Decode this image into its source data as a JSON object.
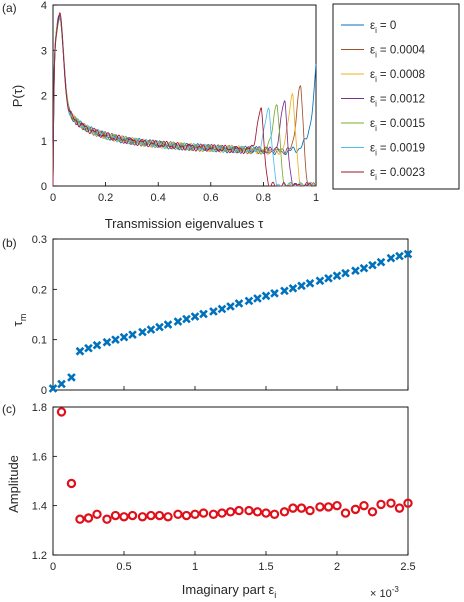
{
  "chart_data": [
    {
      "panel_label": "(a)",
      "type": "line",
      "xlabel": "Transmission eigenvalues τ",
      "ylabel": "P(τ)",
      "xlim": [
        0,
        1
      ],
      "ylim": [
        0,
        4
      ],
      "xticks": [
        "0",
        "0.2",
        "0.4",
        "0.6",
        "0.8",
        "1"
      ],
      "yticks": [
        "0",
        "1",
        "2",
        "3",
        "4"
      ],
      "legend": "outside-right",
      "series": [
        {
          "name": "εi = 0",
          "sym": "ε",
          "sub": "i",
          "val": "= 0",
          "color": "#0072BD",
          "cutoff": 1.0,
          "peak": 2.6
        },
        {
          "name": "εi = 0.0004",
          "sym": "ε",
          "sub": "i",
          "val": "= 0.0004",
          "color": "#A0522D",
          "cutoff": 0.97,
          "peak": 2.2
        },
        {
          "name": "εi = 0.0008",
          "sym": "ε",
          "sub": "i",
          "val": "= 0.0008",
          "color": "#EDB120",
          "cutoff": 0.94,
          "peak": 2.05
        },
        {
          "name": "εi = 0.0012",
          "sym": "ε",
          "sub": "i",
          "val": "= 0.0012",
          "color": "#7E2F8E",
          "cutoff": 0.91,
          "peak": 1.85
        },
        {
          "name": "εi = 0.0015",
          "sym": "ε",
          "sub": "i",
          "val": "= 0.0015",
          "color": "#77AC30",
          "cutoff": 0.88,
          "peak": 1.8
        },
        {
          "name": "εi = 0.0019",
          "sym": "ε",
          "sub": "i",
          "val": "= 0.0019",
          "color": "#4DBEEE",
          "cutoff": 0.85,
          "peak": 1.7
        },
        {
          "name": "εi = 0.0023",
          "sym": "ε",
          "sub": "i",
          "val": "= 0.0023",
          "color": "#A2142F",
          "cutoff": 0.82,
          "peak": 1.65
        }
      ]
    },
    {
      "panel_label": "(b)",
      "type": "scatter",
      "ylabel": "τm",
      "ylabel_main": "τ",
      "ylabel_sub": "m",
      "xlim": [
        0,
        2.5
      ],
      "ylim": [
        0,
        0.3
      ],
      "yticks": [
        "0",
        "0.1",
        "0.2",
        "0.3"
      ],
      "marker": "x",
      "color": "#0072BD",
      "x": [
        0.0,
        0.06,
        0.13,
        0.19,
        0.25,
        0.31,
        0.38,
        0.44,
        0.5,
        0.56,
        0.63,
        0.69,
        0.75,
        0.81,
        0.88,
        0.94,
        1.0,
        1.06,
        1.13,
        1.19,
        1.25,
        1.31,
        1.38,
        1.44,
        1.5,
        1.56,
        1.63,
        1.69,
        1.75,
        1.81,
        1.88,
        1.94,
        2.0,
        2.06,
        2.13,
        2.19,
        2.25,
        2.31,
        2.38,
        2.44,
        2.5
      ],
      "y": [
        0.003,
        0.012,
        0.025,
        0.077,
        0.083,
        0.089,
        0.095,
        0.1,
        0.105,
        0.11,
        0.115,
        0.12,
        0.125,
        0.13,
        0.136,
        0.141,
        0.146,
        0.151,
        0.156,
        0.161,
        0.166,
        0.172,
        0.177,
        0.182,
        0.187,
        0.192,
        0.197,
        0.202,
        0.207,
        0.212,
        0.217,
        0.222,
        0.227,
        0.232,
        0.237,
        0.242,
        0.248,
        0.254,
        0.262,
        0.266,
        0.27
      ]
    },
    {
      "panel_label": "(c)",
      "type": "scatter",
      "xlabel": "Imaginary part εi",
      "xlabel_main": "Imaginary part ε",
      "xlabel_sub": "i",
      "ylabel": "Amplitude",
      "xlim": [
        0,
        2.5
      ],
      "ylim": [
        1.2,
        1.8
      ],
      "xticks": [
        "0",
        "0.5",
        "1",
        "1.5",
        "2",
        "2.5"
      ],
      "yticks": [
        "1.2",
        "1.4",
        "1.6",
        "1.8"
      ],
      "x_multiplier": "× 10-3",
      "mult_main": "× 10",
      "mult_exp": "-3",
      "marker": "o",
      "color": "#E0101A",
      "x": [
        0.06,
        0.13,
        0.19,
        0.25,
        0.31,
        0.38,
        0.44,
        0.5,
        0.56,
        0.63,
        0.69,
        0.75,
        0.81,
        0.88,
        0.94,
        1.0,
        1.06,
        1.13,
        1.19,
        1.25,
        1.31,
        1.38,
        1.44,
        1.5,
        1.56,
        1.63,
        1.69,
        1.75,
        1.81,
        1.88,
        1.94,
        2.0,
        2.06,
        2.13,
        2.19,
        2.25,
        2.31,
        2.38,
        2.44,
        2.5
      ],
      "y": [
        1.78,
        1.49,
        1.345,
        1.35,
        1.365,
        1.345,
        1.36,
        1.355,
        1.36,
        1.355,
        1.36,
        1.36,
        1.355,
        1.365,
        1.36,
        1.365,
        1.37,
        1.365,
        1.37,
        1.375,
        1.38,
        1.38,
        1.375,
        1.37,
        1.365,
        1.375,
        1.39,
        1.39,
        1.38,
        1.395,
        1.395,
        1.4,
        1.37,
        1.385,
        1.4,
        1.375,
        1.405,
        1.41,
        1.39,
        1.41
      ]
    }
  ]
}
